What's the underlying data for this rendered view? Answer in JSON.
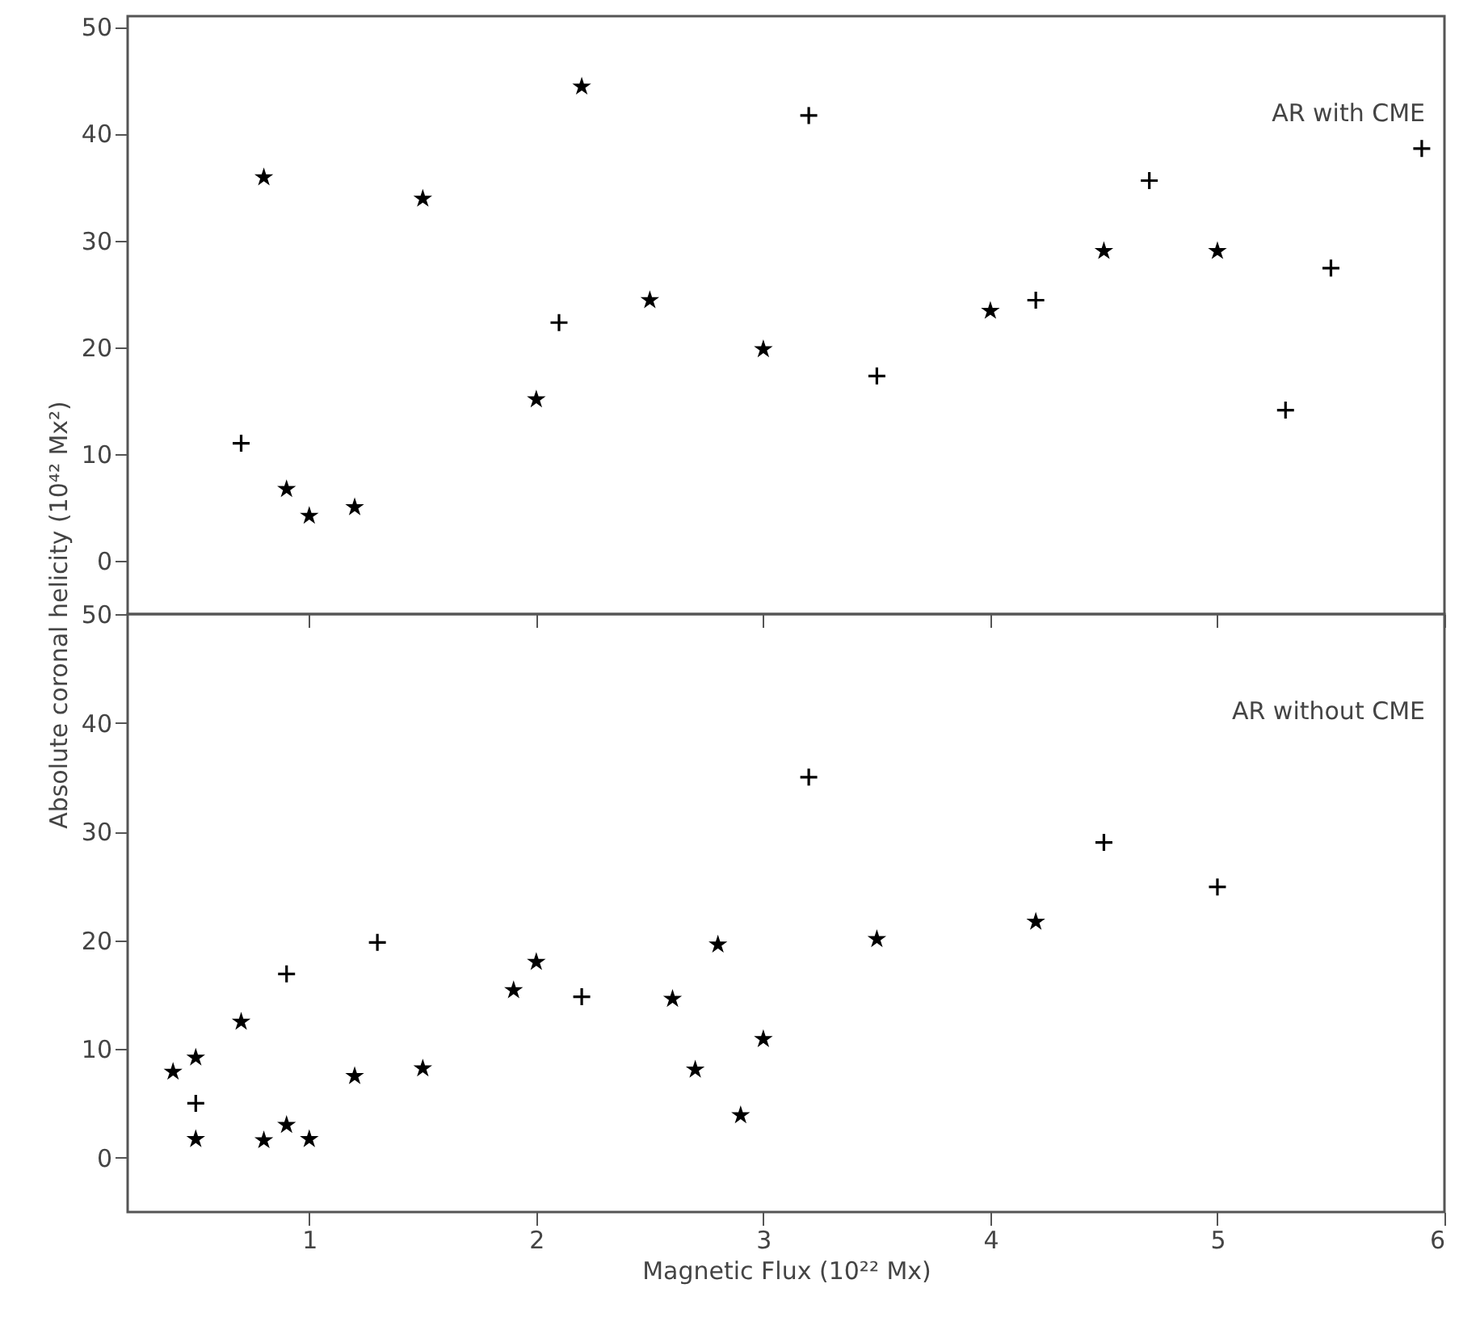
{
  "chart_data": [
    {
      "type": "scatter",
      "ylabel": "Absolute coronal helicity (10⁴² Mx²)",
      "annotations": [
        "AR with CME"
      ],
      "xlim": [
        0.2,
        6
      ],
      "xticks": [
        1,
        2,
        3,
        4,
        5,
        6
      ],
      "ylim": [
        -5,
        51
      ],
      "yticks": [
        0,
        10,
        20,
        30,
        40,
        50
      ],
      "tick_labels": "y",
      "grid": false,
      "series": [
        {
          "color": "#000000",
          "marker": "star",
          "x": [
            0.8,
            0.9,
            1.0,
            1.2,
            1.5,
            2.0,
            2.2,
            2.5,
            3.0,
            4.0,
            4.5,
            5.0
          ],
          "values": [
            35.9,
            6.7,
            4.2,
            5.0,
            33.9,
            15.1,
            44.4,
            24.4,
            19.8,
            23.4,
            29.0,
            29.0
          ]
        },
        {
          "color": "#000000",
          "marker": "cross",
          "x": [
            0.7,
            2.1,
            3.2,
            3.5,
            4.2,
            4.7,
            5.3,
            5.5,
            5.9
          ],
          "values": [
            11.0,
            22.3,
            41.7,
            17.3,
            24.4,
            35.6,
            14.1,
            27.4,
            38.6
          ]
        }
      ]
    },
    {
      "type": "scatter",
      "xlabel": "Magnetic Flux (10²² Mx)",
      "annotations": [
        "AR without  CME"
      ],
      "xlim": [
        0.2,
        6
      ],
      "xticks": [
        1,
        2,
        3,
        4,
        5,
        6
      ],
      "ylim": [
        -5,
        50
      ],
      "yticks": [
        0,
        10,
        20,
        30,
        40,
        50
      ],
      "grid": false,
      "series": [
        {
          "color": "#000000",
          "marker": "star",
          "x": [
            0.4,
            0.5,
            0.5,
            0.7,
            0.8,
            0.9,
            1.0,
            1.2,
            1.5,
            1.9,
            2.0,
            2.6,
            2.7,
            2.8,
            2.9,
            3.0,
            3.5,
            4.2
          ],
          "values": [
            7.9,
            9.2,
            1.7,
            12.5,
            1.6,
            3.0,
            1.7,
            7.5,
            8.2,
            15.4,
            18.0,
            14.6,
            8.1,
            19.6,
            3.9,
            10.9,
            20.1,
            21.7
          ]
        },
        {
          "color": "#000000",
          "marker": "cross",
          "x": [
            0.5,
            0.9,
            1.3,
            2.2,
            3.2,
            4.5,
            5.0
          ],
          "values": [
            5.0,
            16.9,
            19.8,
            14.8,
            35.0,
            29.0,
            24.9
          ]
        }
      ]
    }
  ]
}
